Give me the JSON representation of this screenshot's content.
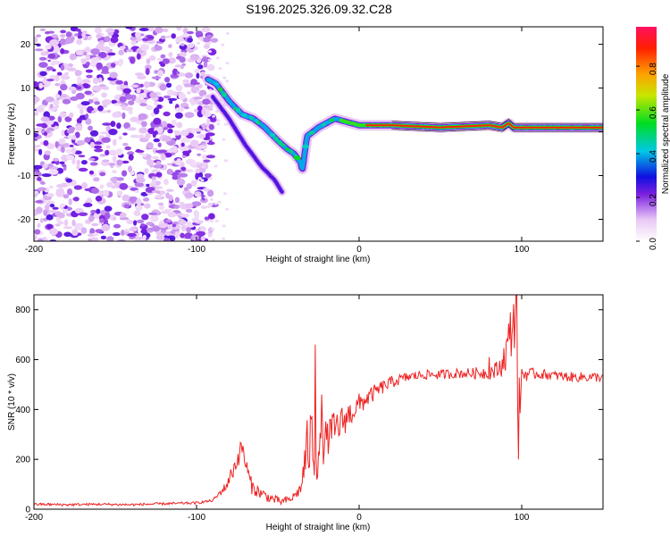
{
  "title": "S196.2025.326.09.32.C28",
  "chart_data": [
    {
      "type": "heatmap",
      "xlabel": "Height of straight line (km)",
      "ylabel": "Frequency (Hz)",
      "xlim": [
        -200,
        150
      ],
      "ylim": [
        -25,
        24
      ],
      "x_ticks": [
        -200,
        -100,
        0,
        100
      ],
      "x_tick_labels": [
        "-200",
        "-100",
        "0",
        "100"
      ],
      "y_ticks": [
        -20,
        -10,
        0,
        10,
        20
      ],
      "y_tick_labels": [
        "-20",
        "-10",
        "0",
        "10",
        "20"
      ],
      "colorbar": {
        "label": "Normalized spectral amplitude",
        "range": [
          0,
          0.98
        ],
        "ticks": [
          0,
          0.2,
          0.4,
          0.6,
          0.8
        ],
        "tick_labels": [
          "0.0",
          "0.2",
          "0.4",
          "0.6",
          "0.8"
        ]
      },
      "noise_region_x": [
        -200,
        -95
      ],
      "ridges": [
        {
          "name": "main-ridge",
          "points": [
            [
              -93,
              12
            ],
            [
              -88,
              11
            ],
            [
              -80,
              7
            ],
            [
              -72,
              4
            ],
            [
              -65,
              3
            ],
            [
              -58,
              1
            ],
            [
              -50,
              -2
            ],
            [
              -44,
              -4
            ],
            [
              -40,
              -5
            ],
            [
              -36,
              -7
            ],
            [
              -35,
              -9
            ],
            [
              -32,
              -1
            ],
            [
              -25,
              1
            ],
            [
              -15,
              3
            ],
            [
              -5,
              2
            ],
            [
              0,
              1.5
            ],
            [
              20,
              1.5
            ],
            [
              50,
              1
            ],
            [
              80,
              1.5
            ],
            [
              88,
              1
            ],
            [
              92,
              2
            ],
            [
              95,
              1
            ],
            [
              100,
              1
            ],
            [
              150,
              1
            ]
          ],
          "amplitude": 0.9
        },
        {
          "name": "lower-ridge",
          "points": [
            [
              -90,
              8
            ],
            [
              -80,
              3
            ],
            [
              -70,
              -3
            ],
            [
              -60,
              -8
            ],
            [
              -52,
              -11
            ],
            [
              -47,
              -14
            ]
          ],
          "amplitude": 0.25
        }
      ]
    },
    {
      "type": "line",
      "xlabel": "Height of straight line (km)",
      "ylabel": "SNR (10 * v/v)",
      "xlim": [
        -200,
        150
      ],
      "ylim": [
        0,
        860
      ],
      "x_ticks": [
        -200,
        -100,
        0,
        100
      ],
      "x_tick_labels": [
        "-200",
        "-100",
        "0",
        "100"
      ],
      "y_ticks": [
        0,
        200,
        400,
        600,
        800
      ],
      "y_tick_labels": [
        "0",
        "200",
        "400",
        "600",
        "800"
      ],
      "series": [
        {
          "name": "SNR",
          "color": "#ee2222",
          "x": [
            -200,
            -180,
            -160,
            -140,
            -120,
            -100,
            -90,
            -82,
            -76,
            -72,
            -69,
            -66,
            -62,
            -55,
            -48,
            -42,
            -36,
            -32,
            -29,
            -26,
            -22,
            -18,
            -12,
            -6,
            0,
            6,
            12,
            20,
            30,
            40,
            50,
            60,
            70,
            80,
            86,
            90,
            93,
            95,
            96.5,
            98,
            100,
            105,
            115,
            130,
            150
          ],
          "y": [
            20,
            18,
            20,
            18,
            22,
            25,
            35,
            90,
            180,
            250,
            160,
            90,
            70,
            45,
            30,
            40,
            80,
            240,
            280,
            200,
            260,
            300,
            340,
            380,
            420,
            450,
            480,
            510,
            530,
            540,
            540,
            545,
            545,
            550,
            560,
            620,
            700,
            760,
            820,
            380,
            540,
            545,
            540,
            530,
            530
          ],
          "jitter": [
            5,
            5,
            5,
            5,
            5,
            5,
            5,
            20,
            40,
            40,
            40,
            30,
            25,
            20,
            15,
            15,
            25,
            120,
            150,
            90,
            80,
            80,
            70,
            55,
            45,
            35,
            30,
            25,
            20,
            20,
            20,
            20,
            22,
            30,
            40,
            70,
            110,
            130,
            150,
            140,
            40,
            22,
            20,
            20,
            20
          ],
          "spikes": [
            [
              -27,
              660
            ],
            [
              -23,
              460
            ],
            [
              80,
              610
            ],
            [
              97,
              860
            ],
            [
              98,
              200
            ]
          ]
        }
      ]
    }
  ]
}
